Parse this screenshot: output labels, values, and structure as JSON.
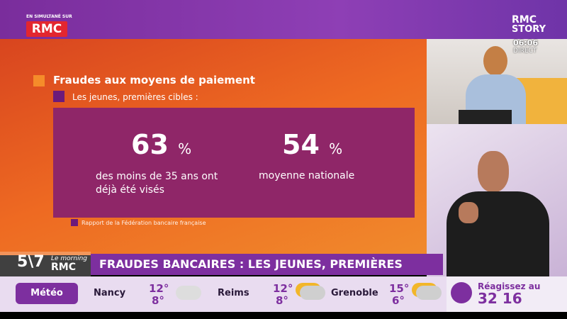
{
  "channel": {
    "simulcast": "EN SIMULTANÉ SUR",
    "logo": "RMC",
    "story_logo_1": "RMC",
    "story_logo_2": "STORY",
    "time": "06:06",
    "live": "DIRECT"
  },
  "infographic": {
    "title": "Fraudes aux moyens de paiement",
    "subtitle": "Les jeunes, premières cibles :",
    "stats": [
      {
        "value": "63",
        "unit": "%",
        "caption": "des moins de 35 ans ont déjà été visés"
      },
      {
        "value": "54",
        "unit": "%",
        "caption": "moyenne nationale"
      }
    ],
    "source": "Rapport de la Fédération bancaire française"
  },
  "show": {
    "logo": "5\\7",
    "logo_small": "Le morning",
    "logo_brand": "RMC"
  },
  "headline": "FRAUDES BANCAIRES : LES JEUNES, PREMIÈRES CIBLES",
  "weather": {
    "label": "Météo",
    "cities": [
      {
        "name": "Nancy",
        "max": "12°",
        "min": "8°"
      },
      {
        "name": "Reims",
        "max": "12°",
        "min": "8°"
      },
      {
        "name": "Grenoble",
        "max": "15°",
        "min": "6°"
      }
    ]
  },
  "call": {
    "text": "Réagissez au",
    "number": "32 16"
  }
}
